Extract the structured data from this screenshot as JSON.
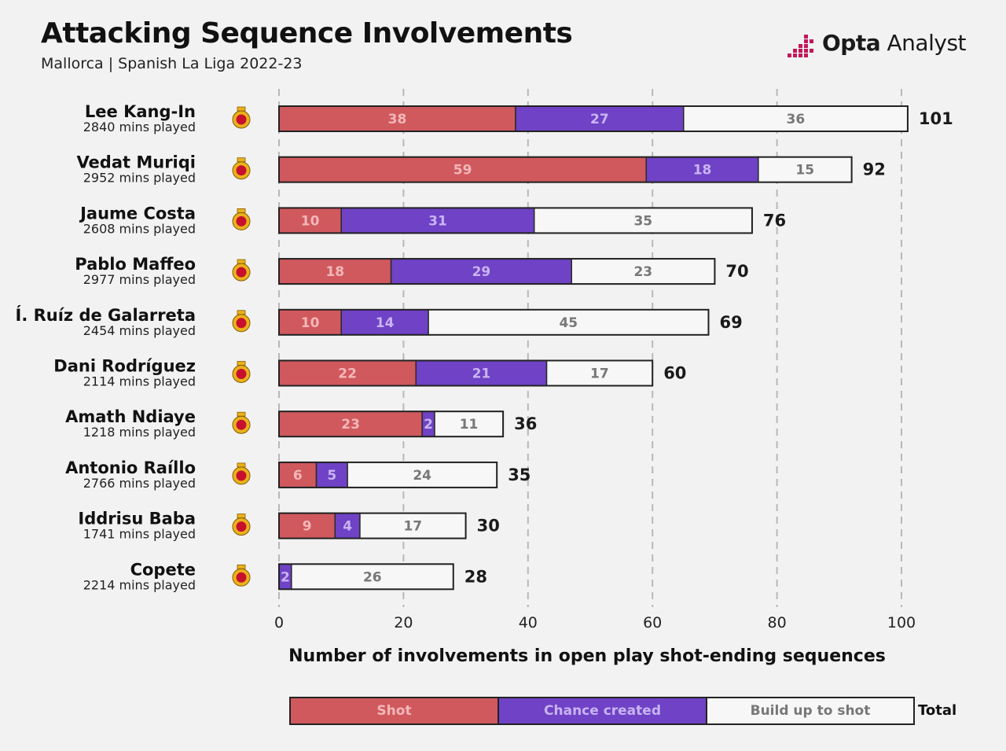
{
  "header": {
    "title": "Attacking Sequence Involvements",
    "subtitle": "Mallorca | Spanish La Liga 2022-23",
    "brand_bold": "Opta",
    "brand_light": "Analyst"
  },
  "colors": {
    "shot": "#d0595e",
    "chance_created": "#6f42c6",
    "build_up": "#f7f7f7",
    "brand_accent": "#c2185b",
    "grid": "#b8b8b8",
    "badge_red": "#c8102e",
    "badge_gold": "#e8b21c"
  },
  "chart_data": {
    "type": "bar",
    "orientation": "horizontal",
    "stacked": true,
    "xlabel": "Number of involvements in open play shot-ending sequences",
    "xlim": [
      0,
      100
    ],
    "xticks": [
      0,
      20,
      40,
      60,
      80,
      100
    ],
    "grid": "vertical dashed",
    "players": [
      {
        "name": "Lee Kang-In",
        "mins": "2840 mins played"
      },
      {
        "name": "Vedat Muriqi",
        "mins": "2952 mins played"
      },
      {
        "name": "Jaume Costa",
        "mins": "2608 mins played"
      },
      {
        "name": "Pablo Maffeo",
        "mins": "2977 mins played"
      },
      {
        "name": "Í. Ruíz de Galarreta",
        "mins": "2454 mins played"
      },
      {
        "name": "Dani Rodríguez",
        "mins": "2114 mins played"
      },
      {
        "name": "Amath Ndiaye",
        "mins": "1218 mins played"
      },
      {
        "name": "Antonio Raíllo",
        "mins": "2766 mins played"
      },
      {
        "name": "Iddrisu Baba",
        "mins": "1741 mins played"
      },
      {
        "name": "Copete",
        "mins": "2214 mins played"
      }
    ],
    "series": [
      {
        "name": "Shot",
        "values": [
          38,
          59,
          10,
          18,
          10,
          22,
          23,
          6,
          9,
          0
        ]
      },
      {
        "name": "Chance created",
        "values": [
          27,
          18,
          31,
          29,
          14,
          21,
          2,
          5,
          4,
          2
        ]
      },
      {
        "name": "Build up to shot",
        "values": [
          36,
          15,
          35,
          23,
          45,
          17,
          11,
          24,
          17,
          26
        ]
      }
    ],
    "totals": [
      101,
      92,
      76,
      70,
      69,
      60,
      36,
      35,
      30,
      28
    ],
    "legend": {
      "position": "bottom",
      "items": [
        "Shot",
        "Chance created",
        "Build up to shot"
      ],
      "total_label": "Total"
    }
  }
}
